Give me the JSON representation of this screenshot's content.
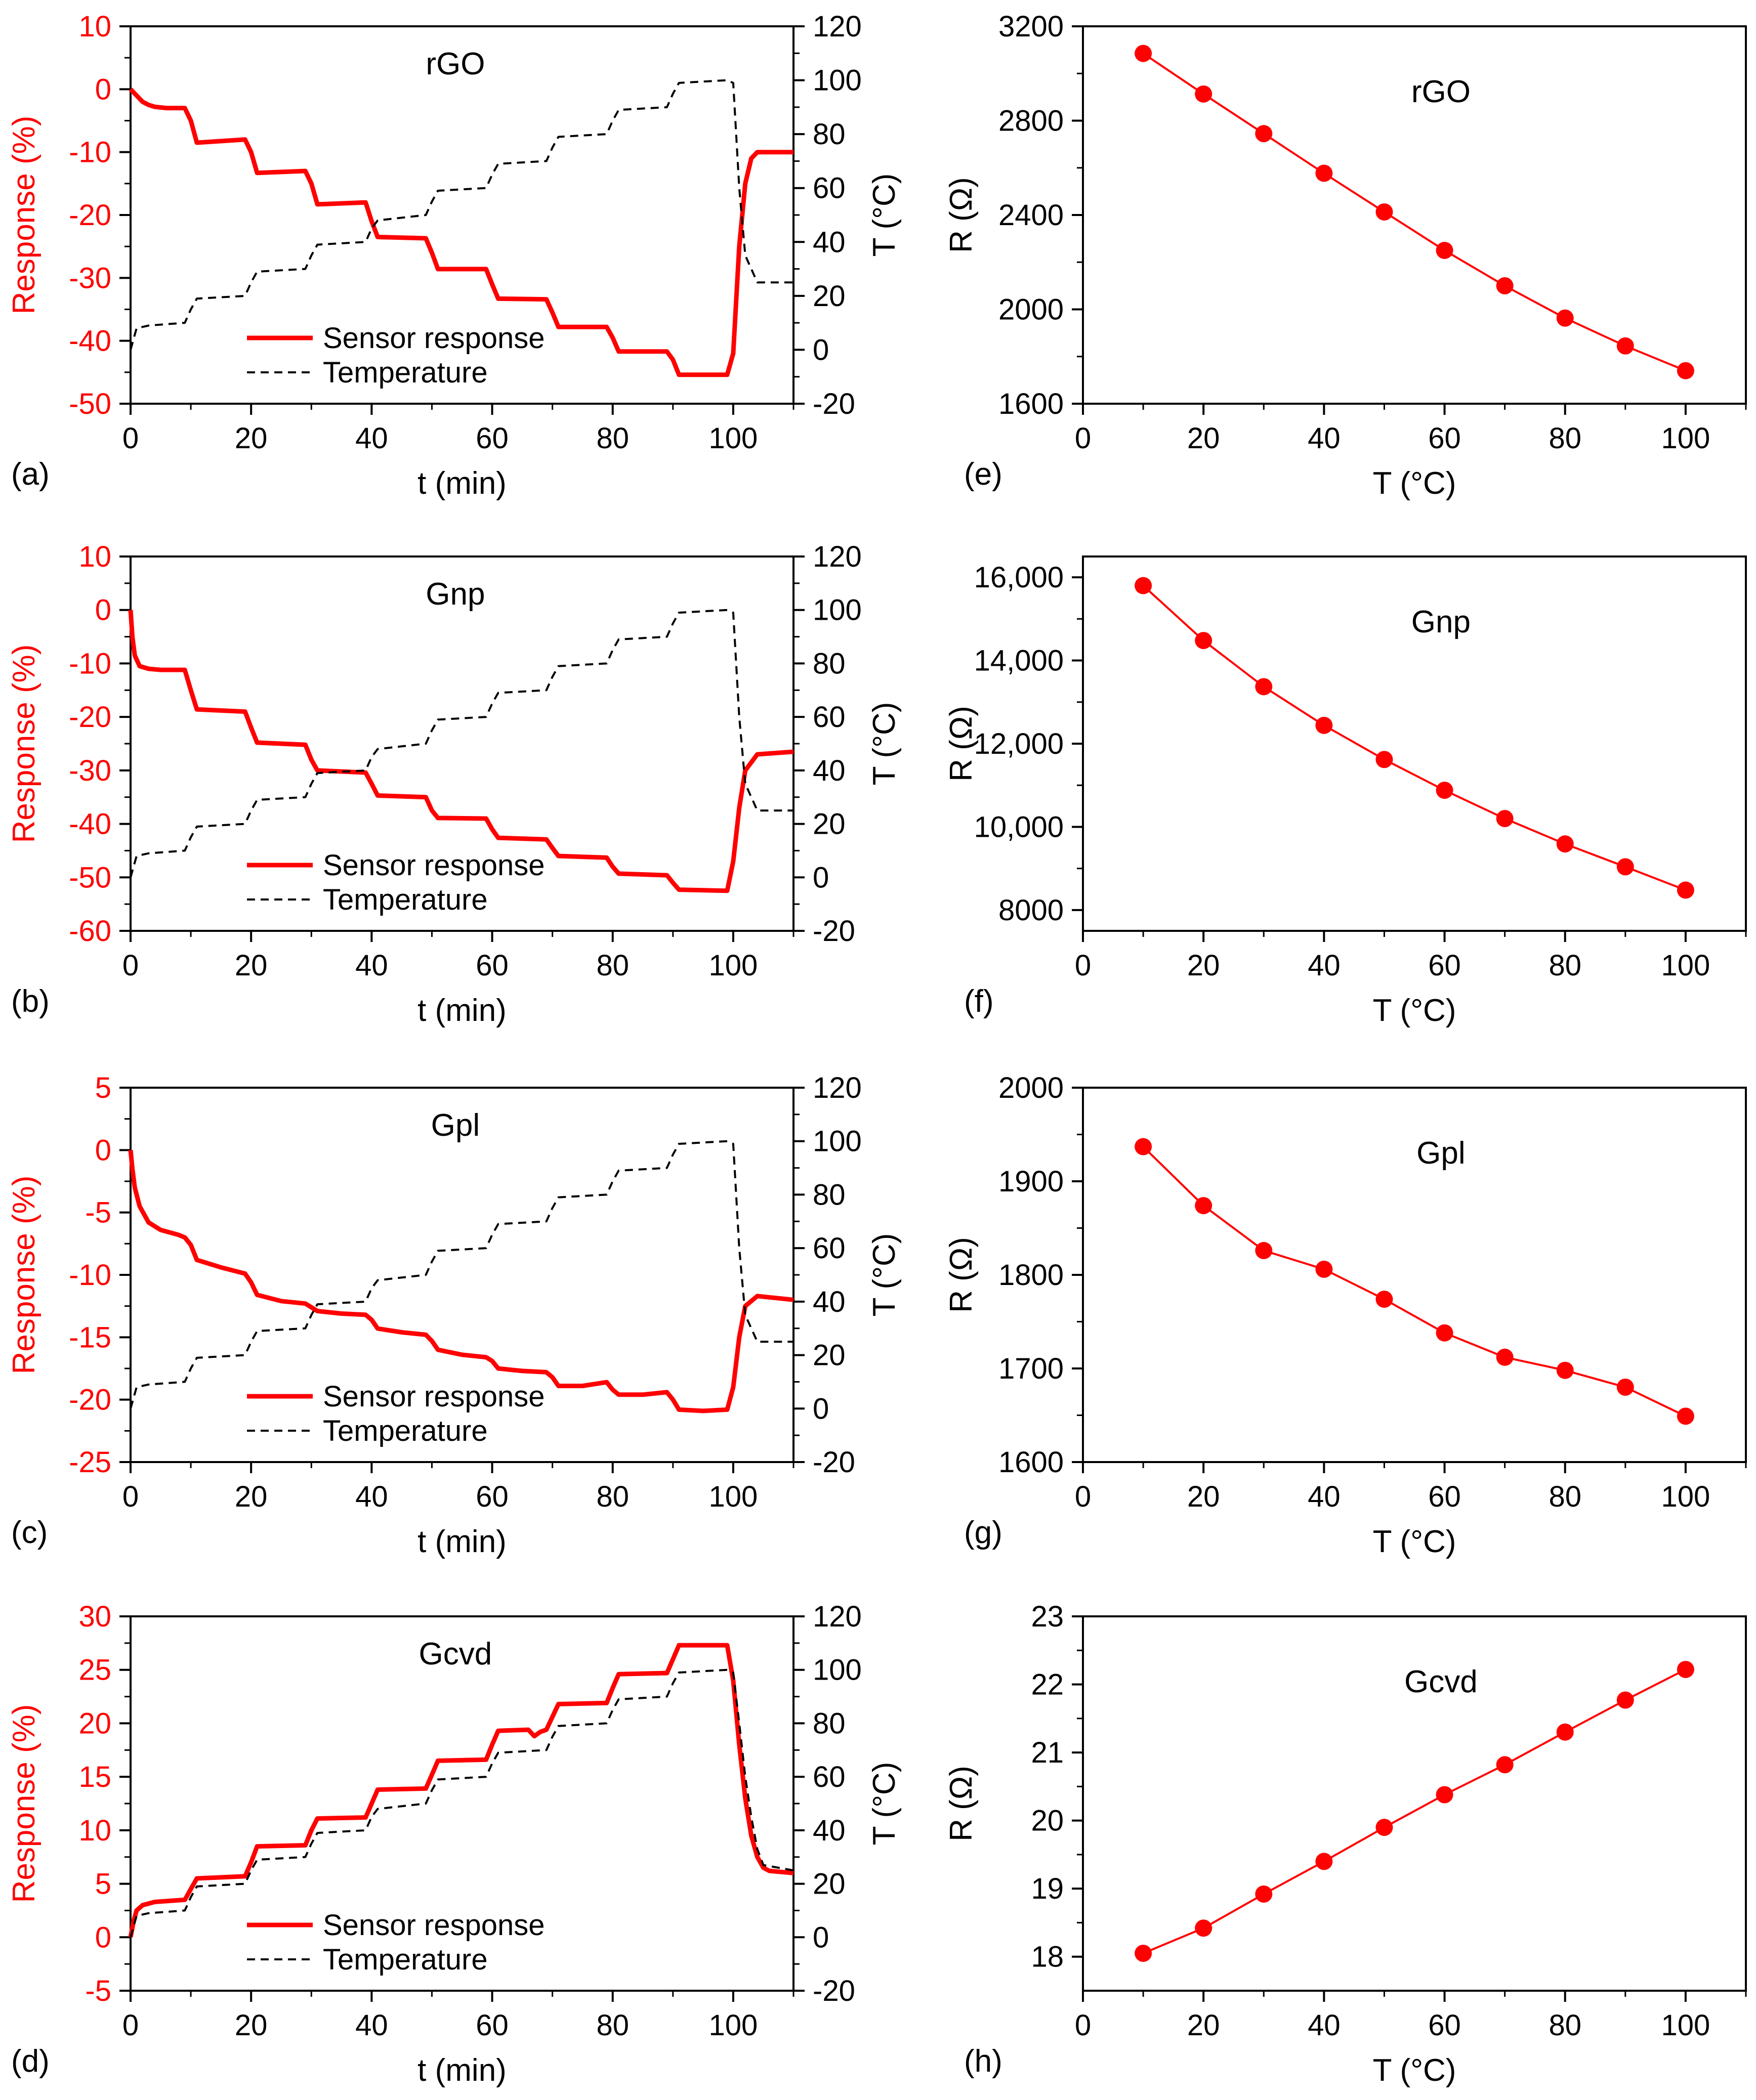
{
  "figure": {
    "response_label": "Response (%)",
    "temp_label": "T (°C)",
    "time_label": "t (min)",
    "r_label": "R (Ω)",
    "temp_axis_label": "T (°C)",
    "legend_response": "Sensor response",
    "legend_temp": "Temperature"
  },
  "colors": {
    "response": "#ff0000",
    "temperature": "#000000",
    "axis": "#000000"
  },
  "chart_data": [
    {
      "type": "line",
      "panel": "(a)",
      "title": "rGO",
      "xlabel": "t (min)",
      "ylabel": "Response (%)",
      "y2label": "T (°C)",
      "xlim": [
        0,
        110
      ],
      "ylim": [
        -50,
        10
      ],
      "y2lim": [
        -20,
        120
      ],
      "xticks": [
        "0",
        "20",
        "40",
        "60",
        "80",
        "100"
      ],
      "yticks": [
        "-50",
        "-40",
        "-30",
        "-20",
        "-10",
        "0",
        "10"
      ],
      "y2ticks": [
        "-20",
        "0",
        "20",
        "40",
        "60",
        "80",
        "100",
        "120"
      ],
      "series": [
        {
          "name": "Sensor response",
          "axis": "left",
          "x": [
            0,
            1,
            2,
            3,
            4,
            5,
            6,
            9,
            10,
            11,
            19,
            20,
            21,
            29,
            30,
            31,
            39,
            40,
            41,
            49,
            50,
            51,
            59,
            60,
            61,
            69,
            70,
            71,
            79,
            80,
            81,
            89,
            90,
            91,
            99,
            100,
            101,
            102,
            103,
            104,
            110
          ],
          "y": [
            0,
            -1,
            -2,
            -2.5,
            -2.8,
            -2.9,
            -3,
            -3,
            -5,
            -8.5,
            -8,
            -10,
            -13.3,
            -13,
            -15,
            -18.3,
            -18,
            -21,
            -23.5,
            -23.7,
            -26,
            -28.6,
            -28.6,
            -31,
            -33.3,
            -33.4,
            -35.5,
            -37.8,
            -37.8,
            -39.5,
            -41.7,
            -41.7,
            -43,
            -45.4,
            -45.4,
            -42,
            -25,
            -15,
            -11,
            -10,
            -10
          ]
        },
        {
          "name": "Temperature",
          "axis": "right",
          "x": [
            0,
            1,
            3,
            9,
            10,
            11,
            19,
            20,
            21,
            29,
            30,
            31,
            39,
            40,
            41,
            49,
            50,
            51,
            59,
            60,
            61,
            69,
            70,
            71,
            79,
            80,
            81,
            89,
            90,
            91,
            99,
            100,
            101,
            102,
            104,
            110
          ],
          "y": [
            0,
            8,
            9,
            10,
            15,
            19,
            20,
            25,
            29,
            30,
            35,
            39,
            40,
            45,
            48,
            50,
            55,
            59,
            60,
            65,
            69,
            70,
            75,
            79,
            80,
            85,
            89,
            90,
            95,
            99,
            100,
            99,
            60,
            35,
            25,
            25
          ]
        }
      ]
    },
    {
      "type": "scatter",
      "panel": "(e)",
      "title": "rGO",
      "xlabel": "T (°C)",
      "ylabel": "R (Ω)",
      "xlim": [
        0,
        110
      ],
      "ylim": [
        1600,
        3200
      ],
      "xticks": [
        "0",
        "20",
        "40",
        "60",
        "80",
        "100"
      ],
      "yticks": [
        "1600",
        "2000",
        "2400",
        "2800",
        "3200"
      ],
      "x": [
        10,
        20,
        30,
        40,
        50,
        60,
        70,
        80,
        90,
        100
      ],
      "y": [
        3085,
        2913,
        2745,
        2577,
        2413,
        2250,
        2100,
        1963,
        1845,
        1740
      ]
    },
    {
      "type": "line",
      "panel": "(b)",
      "title": "Gnp",
      "xlabel": "t (min)",
      "ylabel": "Response (%)",
      "y2label": "T (°C)",
      "xlim": [
        0,
        110
      ],
      "ylim": [
        -60,
        10
      ],
      "y2lim": [
        -20,
        120
      ],
      "xticks": [
        "0",
        "20",
        "40",
        "60",
        "80",
        "100"
      ],
      "yticks": [
        "-60",
        "-50",
        "-40",
        "-30",
        "-20",
        "-10",
        "0",
        "10"
      ],
      "y2ticks": [
        "-20",
        "0",
        "20",
        "40",
        "60",
        "80",
        "100",
        "120"
      ],
      "series": [
        {
          "name": "Sensor response",
          "axis": "left",
          "x": [
            0,
            0.3,
            0.7,
            1.5,
            3,
            5,
            9,
            10,
            11,
            19,
            20,
            21,
            29,
            30,
            31,
            39,
            40,
            41,
            49,
            50,
            51,
            59,
            60,
            61,
            69,
            70,
            71,
            79,
            80,
            81,
            89,
            90,
            91,
            99,
            100,
            101,
            102,
            104,
            110
          ],
          "y": [
            0,
            -5,
            -8.5,
            -10.5,
            -11,
            -11.2,
            -11.2,
            -15,
            -18.6,
            -19,
            -22,
            -24.8,
            -25.2,
            -28,
            -30,
            -30.4,
            -32.5,
            -34.7,
            -35,
            -37.5,
            -38.9,
            -39,
            -41,
            -42.6,
            -42.9,
            -44.5,
            -46,
            -46.3,
            -48,
            -49.3,
            -49.6,
            -51,
            -52.3,
            -52.5,
            -47,
            -37,
            -30,
            -27,
            -26.5
          ]
        },
        {
          "name": "Temperature",
          "axis": "right",
          "x": [
            0,
            1,
            3,
            9,
            10,
            11,
            19,
            20,
            21,
            29,
            30,
            31,
            39,
            40,
            41,
            49,
            50,
            51,
            59,
            60,
            61,
            69,
            70,
            71,
            79,
            80,
            81,
            89,
            90,
            91,
            99,
            100,
            101,
            102,
            104,
            110
          ],
          "y": [
            0,
            8,
            9,
            10,
            15,
            19,
            20,
            25,
            29,
            30,
            35,
            39,
            40,
            45,
            48,
            50,
            55,
            59,
            60,
            65,
            69,
            70,
            75,
            79,
            80,
            85,
            89,
            90,
            95,
            99,
            100,
            99,
            60,
            35,
            25,
            25
          ]
        }
      ]
    },
    {
      "type": "scatter",
      "panel": "(f)",
      "title": "Gnp",
      "xlabel": "T (°C)",
      "ylabel": "R (Ω)",
      "xlim": [
        0,
        110
      ],
      "ylim": [
        7500,
        16500
      ],
      "xticks": [
        "0",
        "20",
        "40",
        "60",
        "80",
        "100"
      ],
      "ytickvals": [
        8000,
        10000,
        12000,
        14000,
        16000
      ],
      "yticks": [
        "8000",
        "10,000",
        "12,000",
        "14,000",
        "16,000"
      ],
      "x": [
        10,
        20,
        30,
        40,
        50,
        60,
        70,
        80,
        90,
        100
      ],
      "y": [
        15800,
        14480,
        13370,
        12440,
        11620,
        10880,
        10200,
        9590,
        9040,
        8480
      ]
    },
    {
      "type": "line",
      "panel": "(c)",
      "title": "Gpl",
      "xlabel": "t (min)",
      "ylabel": "Response (%)",
      "y2label": "T (°C)",
      "xlim": [
        0,
        110
      ],
      "ylim": [
        -25,
        5
      ],
      "y2lim": [
        -20,
        120
      ],
      "xticks": [
        "0",
        "20",
        "40",
        "60",
        "80",
        "100"
      ],
      "yticks": [
        "-25",
        "-20",
        "-15",
        "-10",
        "-5",
        "0",
        "5"
      ],
      "y2ticks": [
        "-20",
        "0",
        "20",
        "40",
        "60",
        "80",
        "100",
        "120"
      ],
      "series": [
        {
          "name": "Sensor response",
          "axis": "left",
          "x": [
            0,
            0.3,
            0.7,
            1.5,
            3,
            5,
            8,
            9,
            10,
            11,
            15,
            19,
            20,
            21,
            25,
            29,
            30,
            31,
            35,
            39,
            40,
            41,
            45,
            49,
            50,
            51,
            55,
            59,
            60,
            61,
            65,
            69,
            70,
            71,
            75,
            79,
            80,
            81,
            85,
            89,
            90,
            91,
            95,
            99,
            100,
            101,
            102,
            104,
            110
          ],
          "y": [
            0,
            -1.5,
            -3,
            -4.5,
            -5.8,
            -6.4,
            -6.8,
            -7,
            -7.6,
            -8.8,
            -9.4,
            -9.9,
            -10.6,
            -11.6,
            -12.1,
            -12.3,
            -12.6,
            -12.9,
            -13.1,
            -13.2,
            -13.6,
            -14.3,
            -14.6,
            -14.8,
            -15.3,
            -16,
            -16.4,
            -16.6,
            -16.9,
            -17.5,
            -17.7,
            -17.8,
            -18.2,
            -18.9,
            -18.9,
            -18.6,
            -19.2,
            -19.6,
            -19.6,
            -19.4,
            -20,
            -20.8,
            -20.9,
            -20.8,
            -19,
            -15,
            -12.5,
            -11.7,
            -12
          ]
        },
        {
          "name": "Temperature",
          "axis": "right",
          "x": [
            0,
            1,
            3,
            9,
            10,
            11,
            19,
            20,
            21,
            29,
            30,
            31,
            39,
            40,
            41,
            49,
            50,
            51,
            59,
            60,
            61,
            69,
            70,
            71,
            79,
            80,
            81,
            89,
            90,
            91,
            99,
            100,
            101,
            102,
            104,
            110
          ],
          "y": [
            0,
            8,
            9,
            10,
            15,
            19,
            20,
            25,
            29,
            30,
            35,
            39,
            40,
            45,
            48,
            50,
            55,
            59,
            60,
            65,
            69,
            70,
            75,
            79,
            80,
            85,
            89,
            90,
            95,
            99,
            100,
            99,
            60,
            35,
            25,
            25
          ]
        }
      ]
    },
    {
      "type": "scatter",
      "panel": "(g)",
      "title": "Gpl",
      "xlabel": "T (°C)",
      "ylabel": "R (Ω)",
      "xlim": [
        0,
        110
      ],
      "ylim": [
        1600,
        2000
      ],
      "xticks": [
        "0",
        "20",
        "40",
        "60",
        "80",
        "100"
      ],
      "yticks": [
        "1600",
        "1700",
        "1800",
        "1900",
        "2000"
      ],
      "x": [
        10,
        20,
        30,
        40,
        50,
        60,
        70,
        80,
        90,
        100
      ],
      "y": [
        1937,
        1874,
        1826,
        1806,
        1774,
        1738,
        1712,
        1698,
        1680,
        1649
      ]
    },
    {
      "type": "line",
      "panel": "(d)",
      "title": "Gcvd",
      "xlabel": "t (min)",
      "ylabel": "Response (%)",
      "y2label": "T (°C)",
      "xlim": [
        0,
        110
      ],
      "ylim": [
        -5,
        30
      ],
      "y2lim": [
        -20,
        120
      ],
      "xticks": [
        "0",
        "20",
        "40",
        "60",
        "80",
        "100"
      ],
      "yticks": [
        "-5",
        "0",
        "5",
        "10",
        "15",
        "20",
        "25",
        "30"
      ],
      "y2ticks": [
        "-20",
        "0",
        "20",
        "40",
        "60",
        "80",
        "100",
        "120"
      ],
      "series": [
        {
          "name": "Sensor response",
          "axis": "left",
          "x": [
            0,
            0.5,
            1,
            2,
            4,
            9,
            10,
            11,
            19,
            20,
            21,
            29,
            30,
            31,
            39,
            40,
            41,
            49,
            50,
            51,
            59,
            60,
            61,
            66,
            67,
            68,
            69,
            70,
            71,
            79,
            80,
            81,
            89,
            90,
            91,
            99,
            100,
            101,
            102,
            103,
            104,
            105,
            106,
            110
          ],
          "y": [
            0,
            1.5,
            2.5,
            3,
            3.3,
            3.5,
            4.5,
            5.5,
            5.7,
            7,
            8.5,
            8.6,
            10,
            11.1,
            11.2,
            12.5,
            13.8,
            13.9,
            15.2,
            16.5,
            16.6,
            18,
            19.3,
            19.4,
            18.8,
            19.2,
            19.4,
            20.6,
            21.8,
            21.9,
            23.3,
            24.6,
            24.7,
            26,
            27.3,
            27.3,
            24,
            18,
            13,
            9.5,
            7.5,
            6.5,
            6.2,
            6
          ]
        },
        {
          "name": "Temperature",
          "axis": "right",
          "x": [
            0,
            1,
            3,
            9,
            10,
            11,
            19,
            20,
            21,
            29,
            30,
            31,
            39,
            40,
            41,
            49,
            50,
            51,
            59,
            60,
            61,
            69,
            70,
            71,
            79,
            80,
            81,
            89,
            90,
            91,
            99,
            100,
            101,
            102,
            103,
            104,
            105,
            110
          ],
          "y": [
            0,
            8,
            9,
            10,
            15,
            19,
            20,
            25,
            29,
            30,
            35,
            39,
            40,
            45,
            48,
            50,
            55,
            59,
            60,
            65,
            69,
            70,
            75,
            79,
            80,
            85,
            89,
            90,
            95,
            99,
            100,
            99,
            80,
            60,
            45,
            33,
            27,
            25
          ]
        }
      ]
    },
    {
      "type": "scatter",
      "panel": "(h)",
      "title": "Gcvd",
      "xlabel": "T (°C)",
      "ylabel": "R (Ω)",
      "xlim": [
        0,
        110
      ],
      "ylim": [
        17.5,
        23
      ],
      "xticks": [
        "0",
        "20",
        "40",
        "60",
        "80",
        "100"
      ],
      "ytickvals": [
        18,
        19,
        20,
        21,
        22,
        23
      ],
      "yticks": [
        "18",
        "19",
        "20",
        "21",
        "22",
        "23"
      ],
      "x": [
        10,
        20,
        30,
        40,
        50,
        60,
        70,
        80,
        90,
        100
      ],
      "y": [
        18.05,
        18.42,
        18.92,
        19.4,
        19.9,
        20.38,
        20.82,
        21.3,
        21.77,
        22.22
      ]
    }
  ]
}
